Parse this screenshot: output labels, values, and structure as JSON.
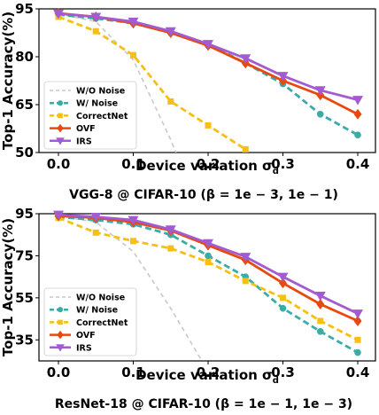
{
  "chart_data": [
    {
      "type": "line",
      "caption": "VGG-8 @ CIFAR-10 (β = 1e − 3, 1e − 1)",
      "xlabel": "Device variation σ",
      "xlabel_sub": "d",
      "ylabel": "Top-1 Accuracy(%)",
      "xlim": [
        0.0,
        0.4
      ],
      "ylim": [
        50,
        95
      ],
      "xticks": [
        0.0,
        0.1,
        0.2,
        0.3,
        0.4
      ],
      "xtick_labels": [
        "0.0",
        "0.1",
        "0.2",
        "0.3",
        "0.4"
      ],
      "yticks": [
        50,
        65,
        80,
        95
      ],
      "ytick_labels": [
        "50",
        "65",
        "80",
        "95"
      ],
      "legend_position": "lower-left",
      "grid": false,
      "series": [
        {
          "name": "W/O Noise",
          "color": "#c8c8c8",
          "marker": "none",
          "x": [
            0.0,
            0.05,
            0.1,
            0.15,
            0.2
          ],
          "y": [
            93.5,
            91,
            79,
            54,
            25
          ]
        },
        {
          "name": "W/ Noise",
          "color": "#3aaba7",
          "marker": "circle",
          "x": [
            0.0,
            0.05,
            0.1,
            0.15,
            0.2,
            0.25,
            0.3,
            0.35,
            0.4
          ],
          "y": [
            93.2,
            92,
            90.5,
            87.5,
            84,
            78,
            71.5,
            62,
            55.5
          ]
        },
        {
          "name": "CorrectNet",
          "color": "#f5bf14",
          "marker": "square",
          "x": [
            0.0,
            0.05,
            0.1,
            0.15,
            0.2,
            0.25
          ],
          "y": [
            92.5,
            88,
            80.5,
            66,
            58.5,
            51
          ]
        },
        {
          "name": "OVF",
          "color": "#e8490f",
          "marker": "diamond",
          "x": [
            0.0,
            0.05,
            0.1,
            0.15,
            0.2,
            0.25,
            0.3,
            0.35,
            0.4
          ],
          "y": [
            93.6,
            92.5,
            90.5,
            87.5,
            83.5,
            78,
            72.5,
            68,
            62
          ]
        },
        {
          "name": "IRS",
          "color": "#a35bd2",
          "marker": "triangle",
          "x": [
            0.0,
            0.05,
            0.1,
            0.15,
            0.2,
            0.25,
            0.3,
            0.35,
            0.4
          ],
          "y": [
            93.5,
            92.5,
            91,
            88,
            84,
            79.5,
            74,
            69.5,
            66.5
          ]
        }
      ]
    },
    {
      "type": "line",
      "caption": "ResNet-18 @ CIFAR-10 (β = 1e − 1, 1e − 3)",
      "xlabel": "Device variation σ",
      "xlabel_sub": "d",
      "ylabel": "Top-1 Accuracy(%)",
      "xlim": [
        0.0,
        0.4
      ],
      "ylim": [
        25,
        95
      ],
      "xticks": [
        0.0,
        0.1,
        0.2,
        0.3,
        0.4
      ],
      "xtick_labels": [
        "0.0",
        "0.1",
        "0.2",
        "0.3",
        "0.4"
      ],
      "yticks": [
        35,
        55,
        75,
        95
      ],
      "ytick_labels": [
        "35",
        "55",
        "75",
        "95"
      ],
      "legend_position": "lower-left",
      "grid": false,
      "series": [
        {
          "name": "W/O Noise",
          "color": "#c8c8c8",
          "marker": "none",
          "x": [
            0.0,
            0.05,
            0.1,
            0.15,
            0.2
          ],
          "y": [
            94,
            91,
            77,
            50,
            20
          ]
        },
        {
          "name": "W/ Noise",
          "color": "#3aaba7",
          "marker": "circle",
          "x": [
            0.0,
            0.05,
            0.1,
            0.15,
            0.2,
            0.25,
            0.3,
            0.35,
            0.4
          ],
          "y": [
            93.5,
            92,
            90,
            85,
            75,
            65,
            50,
            39,
            29
          ]
        },
        {
          "name": "CorrectNet",
          "color": "#f5bf14",
          "marker": "square",
          "x": [
            0.0,
            0.05,
            0.1,
            0.15,
            0.2,
            0.25,
            0.3,
            0.35,
            0.4
          ],
          "y": [
            93,
            86,
            82,
            78.5,
            72,
            63,
            55,
            44,
            35
          ]
        },
        {
          "name": "OVF",
          "color": "#e8490f",
          "marker": "diamond",
          "x": [
            0.0,
            0.05,
            0.1,
            0.15,
            0.2,
            0.25,
            0.3,
            0.35,
            0.4
          ],
          "y": [
            94,
            93,
            91,
            87,
            80,
            73,
            62,
            52,
            44
          ]
        },
        {
          "name": "IRS",
          "color": "#a35bd2",
          "marker": "triangle",
          "x": [
            0.0,
            0.05,
            0.1,
            0.15,
            0.2,
            0.25,
            0.3,
            0.35,
            0.4
          ],
          "y": [
            94.5,
            93.5,
            92,
            87.5,
            81,
            74.5,
            65,
            56,
            47.5
          ]
        }
      ]
    }
  ]
}
